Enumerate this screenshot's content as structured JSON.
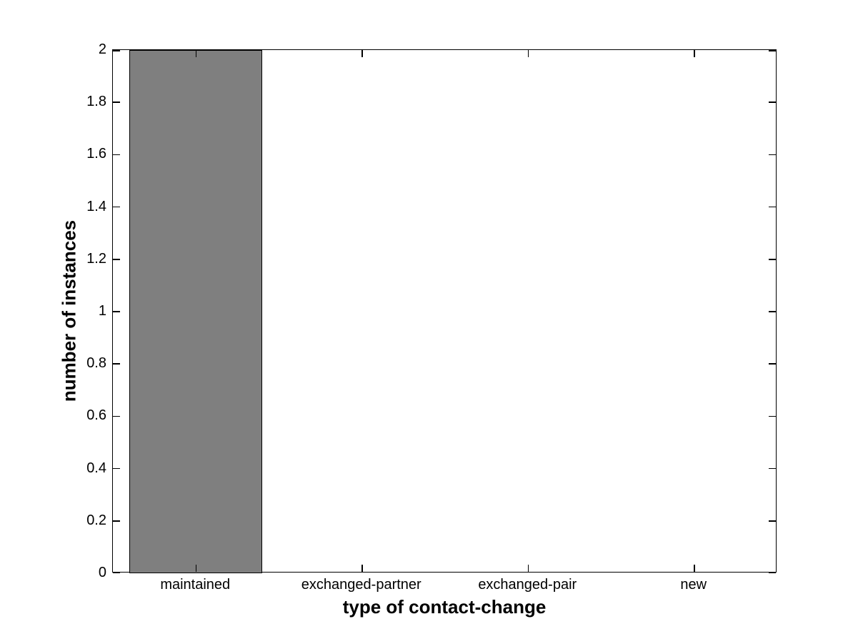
{
  "chart_data": {
    "type": "bar",
    "categories": [
      "maintained",
      "exchanged-partner",
      "exchanged-pair",
      "new"
    ],
    "values": [
      2,
      0,
      0,
      0
    ],
    "title": "",
    "xlabel": "type of contact-change",
    "ylabel": "number of instances",
    "ylim": [
      0,
      2
    ],
    "ytick_values": [
      0,
      0.2,
      0.4,
      0.6,
      0.8,
      1,
      1.2,
      1.4,
      1.6,
      1.8,
      2
    ],
    "ytick_labels": [
      "0",
      "0.2",
      "0.4",
      "0.6",
      "0.8",
      "1",
      "1.2",
      "1.4",
      "1.6",
      "1.8",
      "2"
    ],
    "bar_width_fraction": 0.8,
    "grid": false,
    "legend_position": "none",
    "axes_style": "box-with-inward-mirrored-ticks"
  },
  "colors": {
    "background": "#ffffff",
    "axis": "#000000",
    "text": "#000000",
    "bar_fill": "#7f7f7f",
    "bar_edge": "#000000"
  }
}
